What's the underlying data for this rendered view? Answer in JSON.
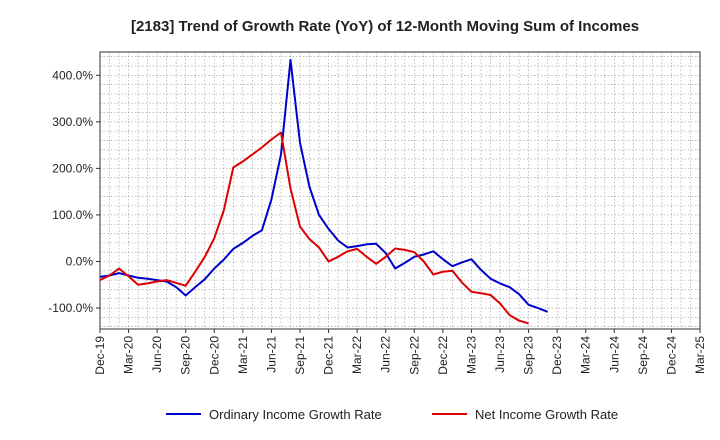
{
  "chart_data": {
    "type": "line",
    "title": "[2183]  Trend of Growth Rate (YoY) of 12-Month Moving Sum of Incomes",
    "xlabel": "",
    "ylabel": "",
    "ylim": [
      -145,
      450
    ],
    "y_ticks": [
      400,
      300,
      200,
      100,
      0,
      -100
    ],
    "y_tick_labels": [
      "400.0%",
      "300.0%",
      "200.0%",
      "100.0%",
      "0.0%",
      "-100.0%"
    ],
    "x_tick_labels": [
      "Dec-19",
      "Mar-20",
      "Jun-20",
      "Sep-20",
      "Dec-20",
      "Mar-21",
      "Jun-21",
      "Sep-21",
      "Dec-21",
      "Mar-22",
      "Jun-22",
      "Sep-22",
      "Dec-22",
      "Mar-23",
      "Jun-23",
      "Sep-23",
      "Dec-23",
      "Mar-24",
      "Jun-24",
      "Sep-24",
      "Dec-24",
      "Mar-25"
    ],
    "grid": true,
    "legend_position": "bottom",
    "series": [
      {
        "name": "Ordinary Income Growth Rate",
        "color": "#0000cc",
        "points": [
          [
            0,
            -33
          ],
          [
            1,
            -30
          ],
          [
            2,
            -25
          ],
          [
            3,
            -30
          ],
          [
            4,
            -35
          ],
          [
            5,
            -37
          ],
          [
            6,
            -40
          ],
          [
            7,
            -43
          ],
          [
            8,
            -55
          ],
          [
            9,
            -73
          ],
          [
            10,
            -55
          ],
          [
            11,
            -38
          ],
          [
            12,
            -15
          ],
          [
            13,
            4
          ],
          [
            14,
            27
          ],
          [
            15,
            40
          ],
          [
            16,
            55
          ],
          [
            17,
            67
          ],
          [
            18,
            133
          ],
          [
            19,
            230
          ],
          [
            20,
            433
          ],
          [
            21,
            255
          ],
          [
            22,
            160
          ],
          [
            23,
            100
          ],
          [
            24,
            70
          ],
          [
            25,
            45
          ],
          [
            26,
            30
          ],
          [
            27,
            33
          ],
          [
            28,
            37
          ],
          [
            29,
            38
          ],
          [
            30,
            18
          ],
          [
            31,
            -15
          ],
          [
            32,
            -3
          ],
          [
            33,
            10
          ],
          [
            34,
            15
          ],
          [
            35,
            22
          ],
          [
            36,
            5
          ],
          [
            37,
            -10
          ],
          [
            38,
            -2
          ],
          [
            39,
            5
          ],
          [
            40,
            -18
          ],
          [
            41,
            -37
          ],
          [
            42,
            -47
          ],
          [
            43,
            -55
          ],
          [
            44,
            -70
          ],
          [
            45,
            -93
          ],
          [
            46,
            -100
          ],
          [
            47,
            -108
          ]
        ]
      },
      {
        "name": "Net Income Growth Rate",
        "color": "#dd0000",
        "points": [
          [
            0,
            -40
          ],
          [
            1,
            -30
          ],
          [
            2,
            -15
          ],
          [
            3,
            -32
          ],
          [
            4,
            -50
          ],
          [
            5,
            -47
          ],
          [
            6,
            -43
          ],
          [
            7,
            -40
          ],
          [
            8,
            -46
          ],
          [
            9,
            -52
          ],
          [
            10,
            -22
          ],
          [
            11,
            10
          ],
          [
            12,
            50
          ],
          [
            13,
            110
          ],
          [
            14,
            202
          ],
          [
            15,
            215
          ],
          [
            16,
            230
          ],
          [
            17,
            245
          ],
          [
            18,
            262
          ],
          [
            19,
            277
          ],
          [
            20,
            157
          ],
          [
            21,
            75
          ],
          [
            22,
            48
          ],
          [
            23,
            30
          ],
          [
            24,
            0
          ],
          [
            25,
            10
          ],
          [
            26,
            22
          ],
          [
            27,
            27
          ],
          [
            28,
            10
          ],
          [
            29,
            -5
          ],
          [
            30,
            10
          ],
          [
            31,
            28
          ],
          [
            32,
            25
          ],
          [
            33,
            20
          ],
          [
            34,
            0
          ],
          [
            35,
            -28
          ],
          [
            36,
            -22
          ],
          [
            37,
            -20
          ],
          [
            38,
            -45
          ],
          [
            39,
            -65
          ],
          [
            40,
            -68
          ],
          [
            41,
            -72
          ],
          [
            42,
            -90
          ],
          [
            43,
            -115
          ],
          [
            44,
            -127
          ],
          [
            45,
            -133
          ]
        ]
      }
    ]
  }
}
